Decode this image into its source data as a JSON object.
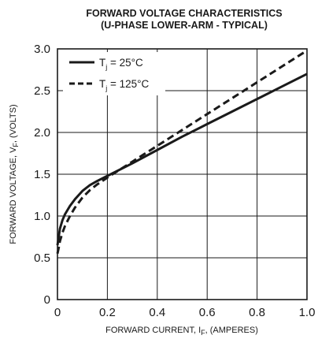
{
  "chart_data": {
    "type": "line",
    "title": "FORWARD VOLTAGE CHARACTERISTICS",
    "subtitle": "(U-PHASE LOWER-ARM - TYPICAL)",
    "xlabel": {
      "main": "FORWARD CURRENT, I",
      "sub": "F",
      "tail": ", (AMPERES)"
    },
    "ylabel": {
      "main": "FORWARD VOLTAGE, V",
      "sub": "F",
      "tail": ", (VOLTS)"
    },
    "xlim": [
      0,
      1.0
    ],
    "ylim": [
      0,
      3.0
    ],
    "x_ticks": [
      0,
      0.2,
      0.4,
      0.6,
      0.8,
      1.0
    ],
    "x_tick_labels": [
      "0",
      "0.2",
      "0.4",
      "0.6",
      "0.8",
      "1.0"
    ],
    "y_ticks": [
      0,
      0.5,
      1.0,
      1.5,
      2.0,
      2.5,
      3.0
    ],
    "y_tick_labels": [
      "0",
      "0.5",
      "1.0",
      "1.5",
      "2.0",
      "2.5",
      "3.0"
    ],
    "grid": true,
    "legend_position": "top-left",
    "series": [
      {
        "name": {
          "main": "T",
          "sub": "j",
          "tail": " = 25°C"
        },
        "style": "solid",
        "color": "#1a1a1a",
        "x": [
          0.0,
          0.005,
          0.01,
          0.02,
          0.03,
          0.05,
          0.07,
          0.1,
          0.13,
          0.16,
          0.2,
          0.3,
          0.4,
          0.5,
          0.6,
          0.7,
          0.8,
          0.9,
          1.0
        ],
        "y": [
          0.65,
          0.75,
          0.85,
          0.95,
          1.02,
          1.12,
          1.2,
          1.3,
          1.37,
          1.42,
          1.48,
          1.63,
          1.79,
          1.95,
          2.1,
          2.25,
          2.4,
          2.55,
          2.7
        ]
      },
      {
        "name": {
          "main": "T",
          "sub": "j",
          "tail": " = 125°C"
        },
        "style": "dashed",
        "color": "#1a1a1a",
        "x": [
          0.0,
          0.005,
          0.01,
          0.02,
          0.03,
          0.05,
          0.07,
          0.1,
          0.13,
          0.16,
          0.2,
          0.3,
          0.4,
          0.5,
          0.6,
          0.7,
          0.8,
          0.9,
          1.0
        ],
        "y": [
          0.55,
          0.62,
          0.7,
          0.8,
          0.88,
          1.0,
          1.1,
          1.22,
          1.31,
          1.38,
          1.46,
          1.65,
          1.84,
          2.03,
          2.22,
          2.41,
          2.6,
          2.79,
          2.98
        ]
      }
    ]
  }
}
